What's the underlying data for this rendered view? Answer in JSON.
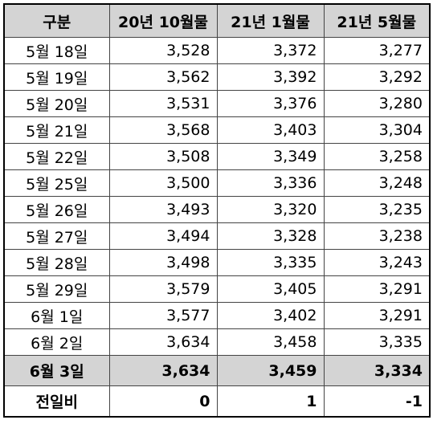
{
  "table": {
    "header": [
      "구분",
      "20년 10월물",
      "21년 1월물",
      "21년 5월물"
    ],
    "rows": [
      [
        "5월 18일",
        "3,528",
        "3,372",
        "3,277"
      ],
      [
        "5월 19일",
        "3,562",
        "3,392",
        "3,292"
      ],
      [
        "5월 20일",
        "3,531",
        "3,376",
        "3,280"
      ],
      [
        "5월 21일",
        "3,568",
        "3,403",
        "3,304"
      ],
      [
        "5월 22일",
        "3,508",
        "3,349",
        "3,258"
      ],
      [
        "5월 25일",
        "3,500",
        "3,336",
        "3,248"
      ],
      [
        "5월 26일",
        "3,493",
        "3,320",
        "3,235"
      ],
      [
        "5월 27일",
        "3,494",
        "3,328",
        "3,238"
      ],
      [
        "5월 28일",
        "3,498",
        "3,335",
        "3,243"
      ],
      [
        "5월 29일",
        "3,579",
        "3,405",
        "3,291"
      ],
      [
        "6월 1일",
        "3,577",
        "3,402",
        "3,291"
      ],
      [
        "6월 2일",
        "3,634",
        "3,458",
        "3,335"
      ],
      [
        "6월 3일",
        "3,634",
        "3,459",
        "3,334"
      ],
      [
        "전일비",
        "0",
        "1",
        "-1"
      ]
    ]
  }
}
